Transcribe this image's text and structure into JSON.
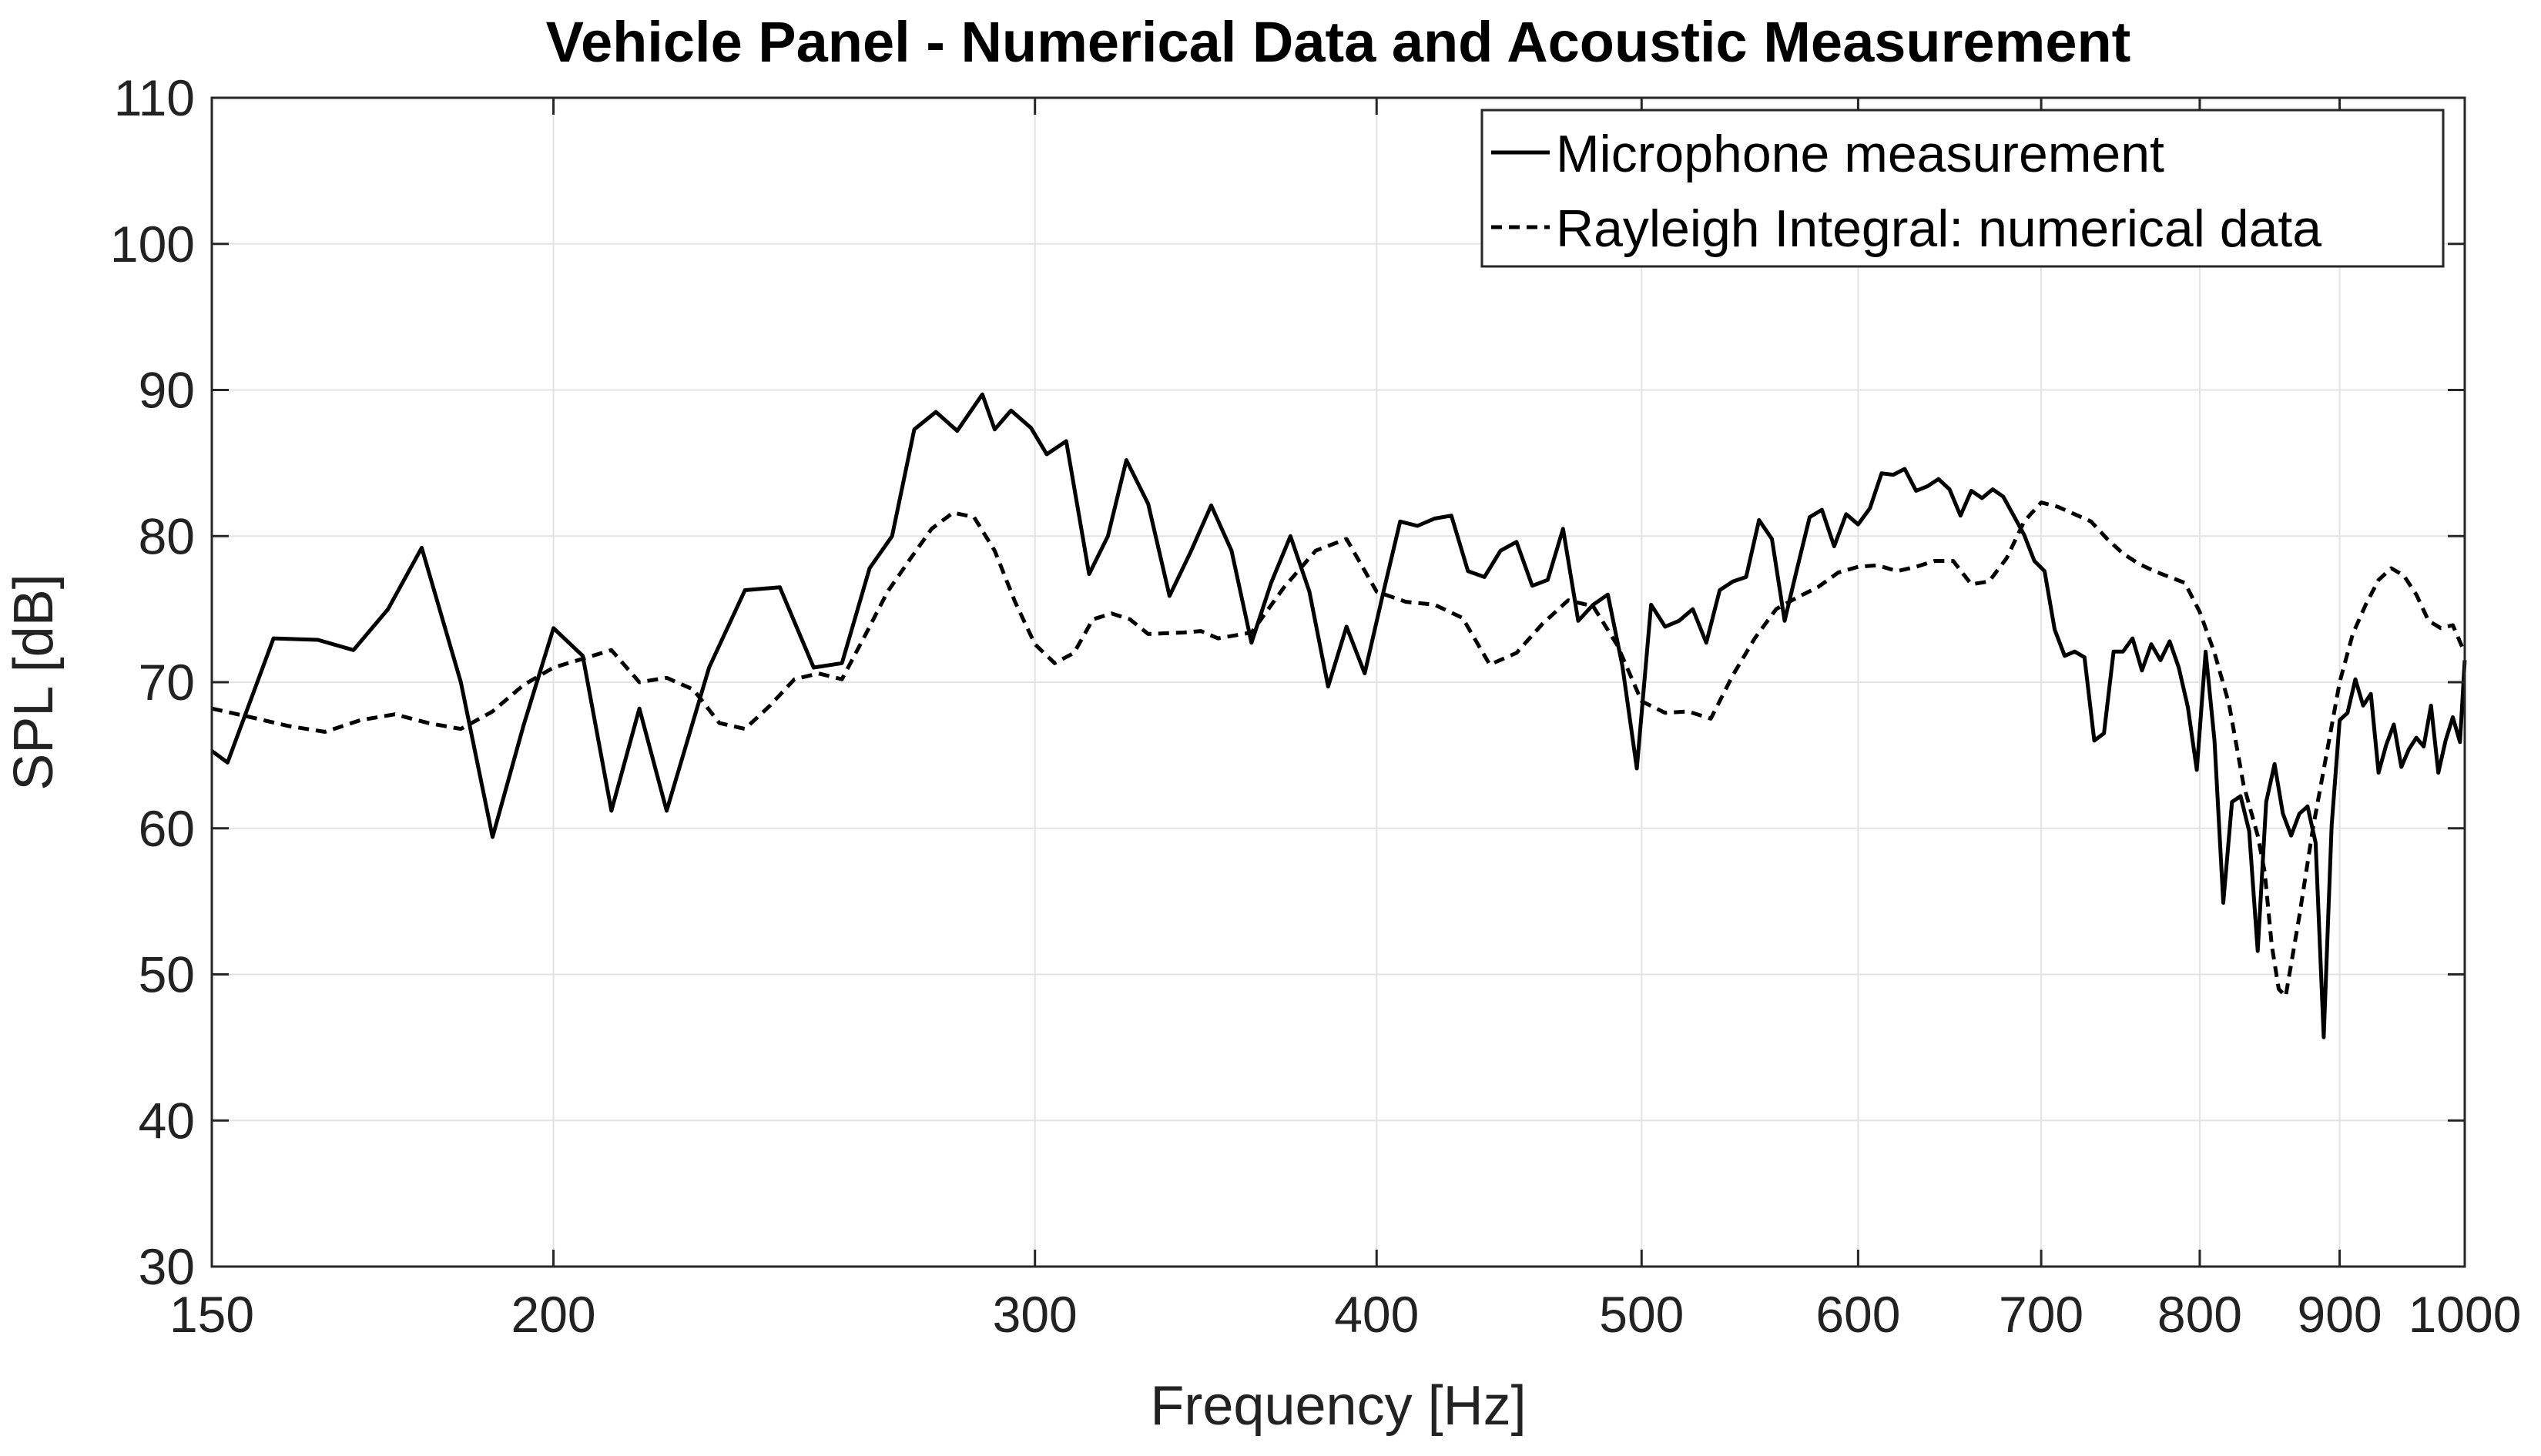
{
  "chart_data": {
    "type": "line",
    "title": "Vehicle Panel - Numerical Data and Acoustic Measurement",
    "xlabel": "Frequency [Hz]",
    "ylabel": "SPL [dB]",
    "xscale": "log",
    "xlim": [
      150,
      1000
    ],
    "ylim": [
      30,
      110
    ],
    "xticks": [
      150,
      200,
      300,
      400,
      500,
      600,
      700,
      800,
      900,
      1000
    ],
    "xtick_labels": [
      "150",
      "200",
      "300",
      "400",
      "500",
      "600",
      "700",
      "800",
      "900",
      "1000"
    ],
    "yticks": [
      30,
      40,
      50,
      60,
      70,
      80,
      90,
      100,
      110
    ],
    "ytick_labels": [
      "30",
      "40",
      "50",
      "60",
      "70",
      "80",
      "90",
      "100",
      "110"
    ],
    "grid": true,
    "legend_position": "top-right",
    "series": [
      {
        "name": "Microphone measurement",
        "style": "solid",
        "color": "#000000",
        "x": [
          150,
          152,
          158,
          164,
          169,
          174,
          179,
          185,
          190,
          195,
          200,
          205,
          210,
          215,
          220,
          228,
          235,
          242,
          249,
          255,
          261,
          266,
          271,
          276,
          281,
          287,
          290,
          294,
          299,
          303,
          308,
          314,
          319,
          324,
          330,
          336,
          342,
          348,
          354,
          360,
          366,
          372,
          378,
          384,
          390,
          396,
          402,
          408,
          414,
          420,
          426,
          432,
          438,
          444,
          450,
          456,
          462,
          468,
          474,
          480,
          486,
          492,
          498,
          504,
          510,
          516,
          522,
          528,
          534,
          540,
          546,
          552,
          558,
          564,
          570,
          576,
          582,
          588,
          594,
          600,
          606,
          612,
          618,
          624,
          630,
          636,
          642,
          648,
          654,
          660,
          666,
          672,
          678,
          684,
          690,
          696,
          702,
          708,
          714,
          720,
          726,
          732,
          738,
          744,
          750,
          756,
          762,
          768,
          774,
          780,
          786,
          792,
          798,
          804,
          810,
          816,
          822,
          828,
          834,
          840,
          846,
          852,
          858,
          864,
          870,
          876,
          882,
          888,
          894,
          900,
          906,
          912,
          918,
          924,
          930,
          936,
          942,
          948,
          954,
          960,
          966,
          972,
          978,
          984,
          990,
          996,
          1000
        ],
        "y": [
          65.3,
          64.5,
          73.0,
          72.9,
          72.2,
          75.0,
          79.2,
          70.0,
          59.4,
          67.0,
          73.7,
          71.8,
          61.2,
          68.2,
          61.2,
          71.0,
          76.3,
          76.5,
          71.0,
          71.3,
          77.8,
          80.0,
          87.3,
          88.5,
          87.2,
          89.7,
          87.3,
          88.6,
          87.4,
          85.6,
          86.5,
          77.4,
          80.0,
          85.2,
          82.2,
          75.9,
          78.9,
          82.1,
          79.0,
          72.7,
          76.8,
          80.0,
          76.2,
          69.7,
          73.8,
          70.6,
          75.9,
          81.0,
          80.7,
          81.2,
          81.4,
          77.6,
          77.2,
          79.0,
          79.6,
          76.6,
          77.0,
          80.5,
          74.2,
          75.3,
          76.0,
          71.1,
          64.1,
          75.3,
          73.8,
          74.2,
          75.0,
          72.7,
          76.3,
          76.9,
          77.2,
          81.1,
          79.8,
          74.2,
          77.8,
          81.3,
          81.8,
          79.3,
          81.5,
          80.8,
          81.9,
          84.3,
          84.2,
          84.6,
          83.1,
          83.4,
          83.9,
          83.2,
          81.4,
          83.1,
          82.6,
          83.2,
          82.7,
          81.4,
          80.1,
          78.3,
          77.6,
          73.6,
          71.8,
          72.1,
          71.7,
          66.0,
          66.5,
          72.1,
          72.1,
          73.0,
          70.8,
          72.6,
          71.5,
          72.8,
          71.0,
          68.3,
          64.0,
          72.1,
          66.0,
          54.9,
          61.8,
          62.2,
          59.8,
          51.6,
          61.8,
          64.4,
          61.0,
          59.5,
          61.0,
          61.5,
          59.0,
          45.7,
          60.2,
          67.4,
          67.9,
          70.2,
          68.4,
          69.2,
          63.8,
          65.7,
          67.1,
          64.2,
          65.4,
          66.2,
          65.6,
          68.4,
          63.8,
          66.0,
          67.6,
          65.9,
          71.5
        ]
      },
      {
        "name": "Rayleigh Integral: numerical data",
        "style": "dashed",
        "color": "#000000",
        "x": [
          150,
          155,
          160,
          165,
          170,
          175,
          180,
          185,
          190,
          195,
          200,
          205,
          210,
          215,
          220,
          225,
          230,
          235,
          240,
          245,
          250,
          255,
          260,
          265,
          270,
          275,
          280,
          285,
          290,
          295,
          300,
          305,
          310,
          315,
          320,
          325,
          330,
          340,
          345,
          350,
          360,
          370,
          380,
          390,
          400,
          410,
          420,
          430,
          440,
          450,
          460,
          470,
          480,
          490,
          500,
          510,
          520,
          530,
          540,
          550,
          560,
          570,
          580,
          590,
          600,
          610,
          620,
          630,
          640,
          650,
          660,
          670,
          680,
          690,
          700,
          710,
          720,
          730,
          740,
          750,
          760,
          770,
          780,
          790,
          800,
          810,
          820,
          830,
          840,
          845,
          850,
          855,
          860,
          870,
          880,
          890,
          900,
          910,
          920,
          930,
          940,
          950,
          960,
          970,
          980,
          990,
          1000
        ],
        "y": [
          68.2,
          67.6,
          67.0,
          66.6,
          67.4,
          67.8,
          67.2,
          66.8,
          68.0,
          69.8,
          71.0,
          71.6,
          72.2,
          70.0,
          70.3,
          69.5,
          67.2,
          66.8,
          68.4,
          70.2,
          70.6,
          70.2,
          73.2,
          76.2,
          78.4,
          80.5,
          81.6,
          81.3,
          79.0,
          75.5,
          72.6,
          71.3,
          72.0,
          74.3,
          74.7,
          74.3,
          73.3,
          73.4,
          73.5,
          73.0,
          73.4,
          76.5,
          79.0,
          79.8,
          76.2,
          75.5,
          75.3,
          74.4,
          71.2,
          72.0,
          74.0,
          75.6,
          75.2,
          72.5,
          68.7,
          67.9,
          68.0,
          67.5,
          70.5,
          73.0,
          75.0,
          75.8,
          76.5,
          77.5,
          77.9,
          78.0,
          77.6,
          77.9,
          78.3,
          78.3,
          76.7,
          76.9,
          78.5,
          81.0,
          82.3,
          82.0,
          81.5,
          81.0,
          79.8,
          78.8,
          78.1,
          77.6,
          77.2,
          76.8,
          74.8,
          72.0,
          68.5,
          63.0,
          59.5,
          57.0,
          52.0,
          49.0,
          48.5,
          54.0,
          60.0,
          65.0,
          70.0,
          73.3,
          75.3,
          77.0,
          77.8,
          77.3,
          76.0,
          74.2,
          73.7,
          73.9,
          72.0
        ]
      }
    ]
  }
}
